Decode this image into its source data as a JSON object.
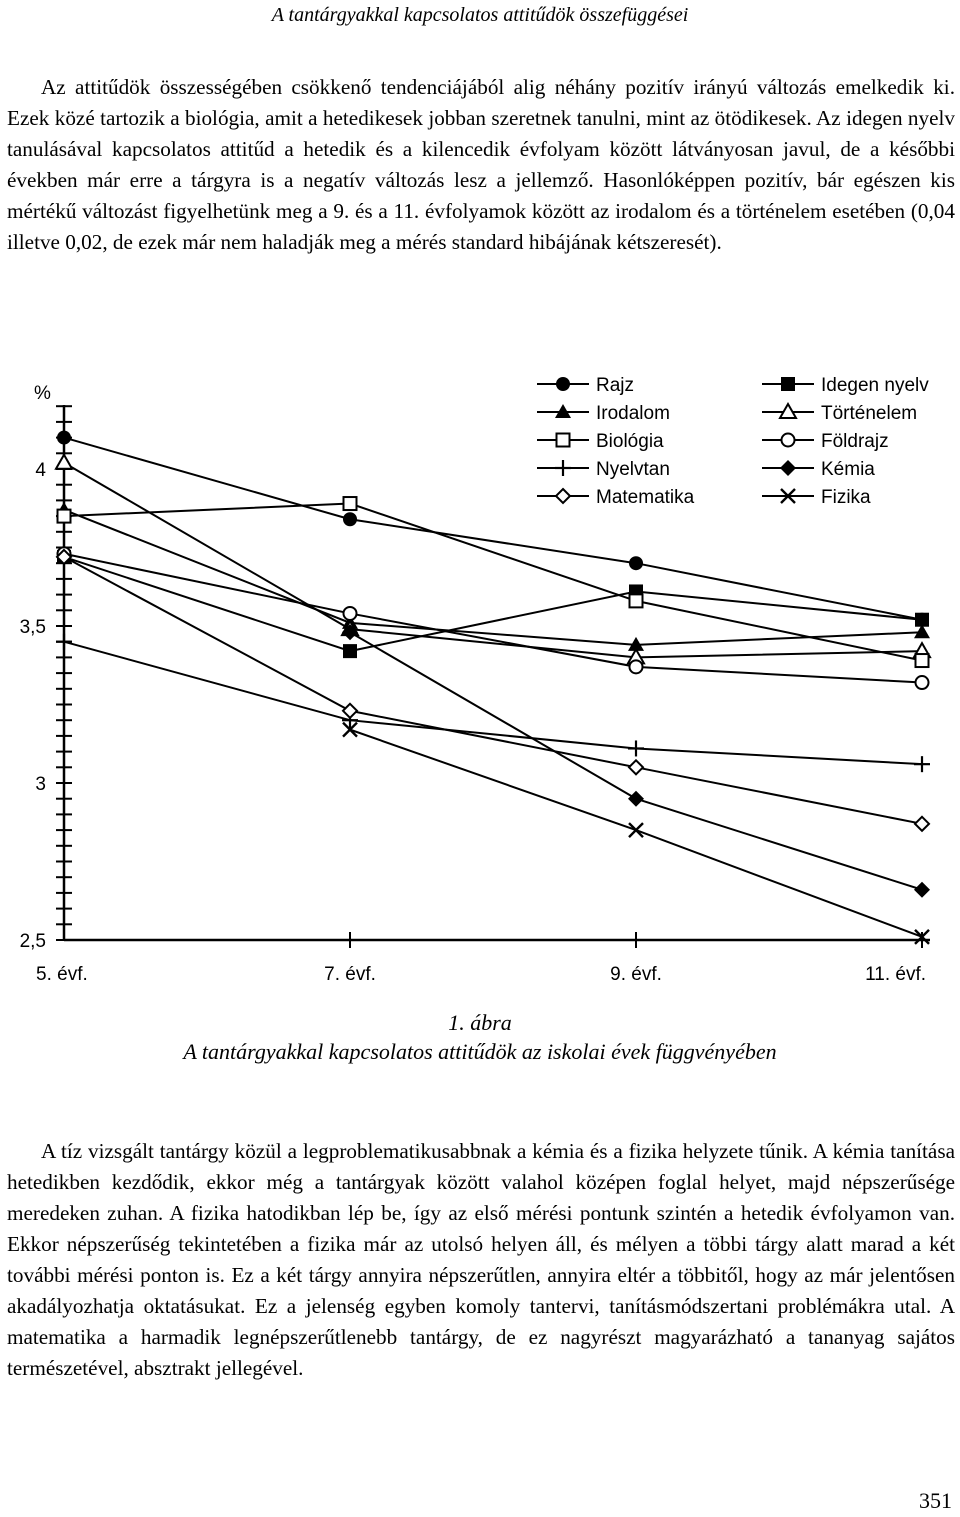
{
  "running_head": "A tantárgyakkal kapcsolatos attitűdök összefüggései",
  "paragraph_1": "Az attitűdök összességében csökkenő tendenciájából alig néhány pozitív irányú változás emelkedik ki. Ezek közé tartozik a biológia, amit a hetedikesek jobban szeretnek tanulni, mint az ötödikesek. Az idegen nyelv tanulásával kapcsolatos attitűd a hetedik és a kilencedik évfolyam között látványosan javul, de a későbbi években már erre a tárgyra is a negatív változás lesz a jellemző. Hasonlóképpen pozitív, bár egészen kis mértékű változást figyelhetünk meg a 9. és a 11. évfolyamok között az irodalom és a történelem esetében (0,04 illetve 0,02, de ezek már nem haladják meg a mérés standard hibájának kétszeresét).",
  "figure": {
    "number": "1. ábra",
    "title": "A tantárgyakkal kapcsolatos attitűdök az iskolai évek függvényében"
  },
  "paragraph_2": "A tíz vizsgált tantárgy közül a legproblematikusabbnak a kémia és a fizika helyzete tűnik. A kémia tanítása hetedikben kezdődik, ekkor még a tantárgyak között valahol középen foglal helyet, majd népszerűsége meredeken zuhan. A fizika hatodikban lép be, így az első mérési pontunk szintén a hetedik évfolyamon van. Ekkor népszerűség tekintetében a fizika már az utolsó helyen áll, és mélyen a többi tárgy alatt marad a két további mérési ponton is. Ez a két tárgy annyira népszerűtlen, annyira eltér a többitől, hogy az már jelentősen akadályozhatja oktatásukat. Ez a jelenség egyben komoly tantervi, tanításmódszertani problémákra utal. A matematika a harmadik legnépszerűtlenebb tantárgy, de ez nagyrészt magyarázható a tananyag sajátos természetével, absztrakt jellegével.",
  "page_number": "351",
  "chart_data": {
    "type": "line",
    "ylabel": "%",
    "categories": [
      "5. évf.",
      "7. évf.",
      "9. évf.",
      "11. évf."
    ],
    "ylim": [
      2.5,
      4.2
    ],
    "yticks": [
      "2,5",
      "3",
      "3,5",
      "4"
    ],
    "ytick_values": [
      2.5,
      3.0,
      3.5,
      4.0
    ],
    "legend_placement": "top-right",
    "series": [
      {
        "name": "Rajz",
        "marker": "circle-filled",
        "values": [
          4.1,
          3.84,
          3.7,
          3.52
        ]
      },
      {
        "name": "Idegen nyelv",
        "marker": "square-filled",
        "values": [
          3.72,
          3.42,
          3.61,
          3.52
        ]
      },
      {
        "name": "Irodalom",
        "marker": "triangle-filled",
        "values": [
          3.87,
          3.51,
          3.44,
          3.48
        ]
      },
      {
        "name": "Történelem",
        "marker": "triangle-open",
        "values": [
          4.02,
          3.49,
          3.4,
          3.42
        ]
      },
      {
        "name": "Biológia",
        "marker": "square-open",
        "values": [
          3.85,
          3.89,
          3.58,
          3.39
        ]
      },
      {
        "name": "Földrajz",
        "marker": "circle-open",
        "values": [
          3.73,
          3.54,
          3.37,
          3.32
        ]
      },
      {
        "name": "Nyelvtan",
        "marker": "plus",
        "values": [
          3.45,
          3.2,
          3.11,
          3.06
        ]
      },
      {
        "name": "Kémia",
        "marker": "diamond-filled",
        "values": [
          null,
          3.48,
          2.95,
          2.66
        ]
      },
      {
        "name": "Matematika",
        "marker": "diamond-open",
        "values": [
          3.72,
          3.23,
          3.05,
          2.87
        ]
      },
      {
        "name": "Fizika",
        "marker": "x",
        "values": [
          null,
          3.17,
          2.85,
          2.51
        ]
      }
    ]
  }
}
